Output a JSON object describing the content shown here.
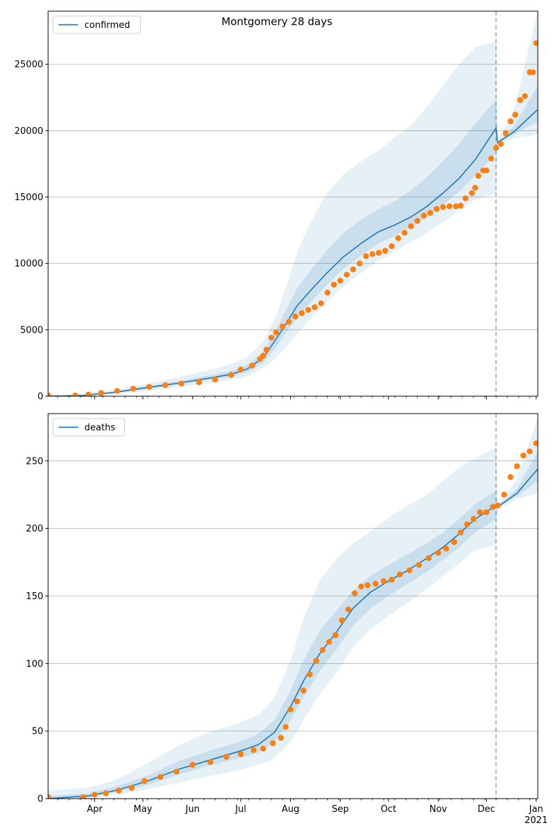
{
  "title": "Montgomery 28 days",
  "chart_data": [
    {
      "type": "line",
      "legend": {
        "label": "confirmed",
        "placement": "top-left"
      },
      "x_ticks": [
        {
          "date": "2020-04-01",
          "label": "Apr"
        },
        {
          "date": "2020-05-01",
          "label": "May"
        },
        {
          "date": "2020-06-01",
          "label": "Jun"
        },
        {
          "date": "2020-07-01",
          "label": "Jul"
        },
        {
          "date": "2020-08-01",
          "label": "Aug"
        },
        {
          "date": "2020-09-01",
          "label": "Sep"
        },
        {
          "date": "2020-10-01",
          "label": "Oct"
        },
        {
          "date": "2020-11-01",
          "label": "Nov"
        },
        {
          "date": "2020-12-01",
          "label": "Dec"
        },
        {
          "date": "2021-01-01",
          "label": "Jan",
          "sublabel": "2021"
        }
      ],
      "x_range": [
        "2020-03-03",
        "2021-01-02"
      ],
      "ylim": [
        0,
        29000
      ],
      "y_ticks": [
        0,
        5000,
        10000,
        15000,
        20000,
        25000
      ],
      "grid": "y-major",
      "forecast_start": "2020-12-07",
      "model": {
        "dates": [
          "2020-03-03",
          "2020-03-25",
          "2020-04-14",
          "2020-05-04",
          "2020-05-24",
          "2020-06-13",
          "2020-06-25",
          "2020-07-05",
          "2020-07-15",
          "2020-07-23",
          "2020-07-30",
          "2020-08-05",
          "2020-08-13",
          "2020-08-23",
          "2020-09-03",
          "2020-09-15",
          "2020-09-25",
          "2020-10-05",
          "2020-10-15",
          "2020-10-25",
          "2020-11-04",
          "2020-11-14",
          "2020-11-24",
          "2020-12-07",
          "2020-12-08",
          "2020-12-18",
          "2021-01-02"
        ],
        "median": [
          0,
          60,
          300,
          650,
          1000,
          1400,
          1650,
          2050,
          2900,
          4300,
          5600,
          6800,
          7900,
          9200,
          10500,
          11600,
          12400,
          12900,
          13500,
          14300,
          15300,
          16400,
          17800,
          20200,
          19100,
          19900,
          21600
        ],
        "p05": [
          0,
          20,
          150,
          400,
          700,
          1000,
          1200,
          1500,
          2100,
          2900,
          3800,
          4700,
          5800,
          7000,
          8300,
          9400,
          10200,
          10900,
          11600,
          12300,
          13100,
          14000,
          14800,
          15300,
          19000,
          19400,
          19700
        ],
        "p95": [
          0,
          130,
          500,
          950,
          1450,
          2000,
          2400,
          2950,
          4100,
          6000,
          8500,
          10800,
          13000,
          15200,
          16700,
          17800,
          18500,
          19500,
          20400,
          21800,
          23400,
          25000,
          26300,
          26700,
          19200,
          21500,
          29000
        ],
        "p25": [
          0,
          45,
          240,
          560,
          880,
          1250,
          1450,
          1800,
          2500,
          3700,
          4900,
          5900,
          7000,
          8300,
          9600,
          10700,
          11500,
          12100,
          12700,
          13500,
          14400,
          15400,
          16600,
          18300,
          19050,
          19700,
          20700
        ],
        "p75": [
          0,
          85,
          370,
          770,
          1150,
          1600,
          1900,
          2350,
          3350,
          5000,
          6700,
          8100,
          9400,
          10900,
          12300,
          13400,
          14100,
          14700,
          15500,
          16500,
          17700,
          19000,
          20500,
          22300,
          19150,
          20300,
          23400
        ]
      },
      "observed": {
        "dates": [
          "2020-03-03",
          "2020-03-20",
          "2020-03-28",
          "2020-04-05",
          "2020-04-15",
          "2020-04-25",
          "2020-05-05",
          "2020-05-15",
          "2020-05-25",
          "2020-06-05",
          "2020-06-15",
          "2020-06-25",
          "2020-07-01",
          "2020-07-08",
          "2020-07-13",
          "2020-07-15",
          "2020-07-17",
          "2020-07-20",
          "2020-07-23",
          "2020-07-27",
          "2020-07-31",
          "2020-08-04",
          "2020-08-08",
          "2020-08-12",
          "2020-08-16",
          "2020-08-20",
          "2020-08-24",
          "2020-08-28",
          "2020-09-01",
          "2020-09-05",
          "2020-09-09",
          "2020-09-13",
          "2020-09-17",
          "2020-09-21",
          "2020-09-25",
          "2020-09-29",
          "2020-10-03",
          "2020-10-07",
          "2020-10-11",
          "2020-10-15",
          "2020-10-19",
          "2020-10-23",
          "2020-10-27",
          "2020-10-31",
          "2020-11-04",
          "2020-11-08",
          "2020-11-12",
          "2020-11-15",
          "2020-11-18",
          "2020-11-22",
          "2020-11-24",
          "2020-11-26",
          "2020-11-29",
          "2020-12-01",
          "2020-12-04",
          "2020-12-07",
          "2020-12-10",
          "2020-12-13",
          "2020-12-16",
          "2020-12-19",
          "2020-12-22",
          "2020-12-25",
          "2020-12-28",
          "2020-12-30",
          "2021-01-01"
        ],
        "values": [
          60,
          60,
          120,
          240,
          400,
          560,
          700,
          830,
          950,
          1050,
          1250,
          1600,
          2000,
          2300,
          2800,
          3050,
          3500,
          4400,
          4800,
          5250,
          5600,
          6000,
          6250,
          6500,
          6700,
          7000,
          7800,
          8400,
          8700,
          9150,
          9550,
          10000,
          10550,
          10700,
          10800,
          10950,
          11300,
          11900,
          12300,
          12800,
          13200,
          13600,
          13800,
          14100,
          14250,
          14300,
          14300,
          14350,
          14900,
          15300,
          15700,
          16600,
          17000,
          17000,
          17900,
          18700,
          19000,
          19800,
          20700,
          21200,
          22300,
          22600,
          24400,
          24400,
          26600
        ]
      }
    },
    {
      "type": "line",
      "legend": {
        "label": "deaths",
        "placement": "top-left"
      },
      "x_ticks": [
        {
          "date": "2020-04-01",
          "label": "Apr"
        },
        {
          "date": "2020-05-01",
          "label": "May"
        },
        {
          "date": "2020-06-01",
          "label": "Jun"
        },
        {
          "date": "2020-07-01",
          "label": "Jul"
        },
        {
          "date": "2020-08-01",
          "label": "Aug"
        },
        {
          "date": "2020-09-01",
          "label": "Sep"
        },
        {
          "date": "2020-10-01",
          "label": "Oct"
        },
        {
          "date": "2020-11-01",
          "label": "Nov"
        },
        {
          "date": "2020-12-01",
          "label": "Dec"
        },
        {
          "date": "2021-01-01",
          "label": "Jan",
          "sublabel": "2021"
        }
      ],
      "x_range": [
        "2020-03-03",
        "2021-01-02"
      ],
      "ylim": [
        0,
        285
      ],
      "y_ticks": [
        0,
        50,
        100,
        150,
        200,
        250
      ],
      "grid": "y-major",
      "forecast_start": "2020-12-07",
      "model": {
        "dates": [
          "2020-03-03",
          "2020-03-28",
          "2020-04-14",
          "2020-05-04",
          "2020-05-24",
          "2020-06-13",
          "2020-06-30",
          "2020-07-12",
          "2020-07-22",
          "2020-08-01",
          "2020-08-09",
          "2020-08-19",
          "2020-08-30",
          "2020-09-09",
          "2020-09-20",
          "2020-10-01",
          "2020-10-13",
          "2020-10-25",
          "2020-11-04",
          "2020-11-14",
          "2020-11-24",
          "2020-12-07",
          "2020-12-08",
          "2020-12-20",
          "2021-01-02"
        ],
        "median": [
          0,
          2,
          6,
          13,
          22,
          29,
          35,
          40,
          49,
          68,
          87,
          107,
          124,
          141,
          153,
          161,
          169,
          178,
          186,
          196,
          207,
          217,
          216,
          226,
          244
        ],
        "p05": [
          0,
          0,
          3,
          7,
          12,
          17,
          21,
          25,
          30,
          42,
          58,
          77,
          94,
          112,
          126,
          135,
          145,
          155,
          165,
          174,
          184,
          188,
          214,
          222,
          226
        ],
        "p95": [
          6,
          8,
          14,
          26,
          40,
          50,
          56,
          62,
          75,
          102,
          133,
          161,
          178,
          189,
          198,
          208,
          217,
          225,
          235,
          245,
          252,
          260,
          218,
          236,
          282
        ],
        "p25": [
          0,
          1,
          5,
          10,
          18,
          25,
          30,
          34,
          42,
          58,
          75,
          94,
          111,
          128,
          141,
          150,
          159,
          168,
          177,
          186,
          197,
          207,
          215,
          224,
          235
        ],
        "p75": [
          2,
          4,
          9,
          17,
          28,
          36,
          42,
          48,
          58,
          80,
          102,
          124,
          140,
          154,
          165,
          173,
          181,
          189,
          197,
          207,
          218,
          228,
          217,
          229,
          257
        ]
      },
      "observed": {
        "dates": [
          "2020-03-03",
          "2020-03-25",
          "2020-04-01",
          "2020-04-08",
          "2020-04-16",
          "2020-04-24",
          "2020-05-02",
          "2020-05-12",
          "2020-05-22",
          "2020-06-01",
          "2020-06-12",
          "2020-06-22",
          "2020-07-01",
          "2020-07-09",
          "2020-07-15",
          "2020-07-21",
          "2020-07-26",
          "2020-07-29",
          "2020-08-01",
          "2020-08-05",
          "2020-08-09",
          "2020-08-13",
          "2020-08-17",
          "2020-08-21",
          "2020-08-25",
          "2020-08-29",
          "2020-09-02",
          "2020-09-06",
          "2020-09-10",
          "2020-09-14",
          "2020-09-18",
          "2020-09-23",
          "2020-09-28",
          "2020-10-03",
          "2020-10-08",
          "2020-10-14",
          "2020-10-20",
          "2020-10-26",
          "2020-11-01",
          "2020-11-06",
          "2020-11-11",
          "2020-11-15",
          "2020-11-19",
          "2020-11-23",
          "2020-11-27",
          "2020-12-01",
          "2020-12-05",
          "2020-12-08",
          "2020-12-12",
          "2020-12-16",
          "2020-12-20",
          "2020-12-24",
          "2020-12-28",
          "2021-01-01"
        ],
        "values": [
          1,
          1,
          3,
          4,
          6,
          8,
          13,
          16,
          20,
          25,
          27,
          31,
          33,
          36,
          37,
          41,
          45,
          53,
          66,
          72,
          80,
          92,
          102,
          110,
          116,
          121,
          132,
          140,
          152,
          157,
          158,
          159,
          161,
          162,
          166,
          169,
          173,
          178,
          182,
          185,
          190,
          197,
          203,
          207,
          212,
          212,
          216,
          217,
          225,
          238,
          246,
          254,
          257,
          263
        ]
      }
    }
  ]
}
